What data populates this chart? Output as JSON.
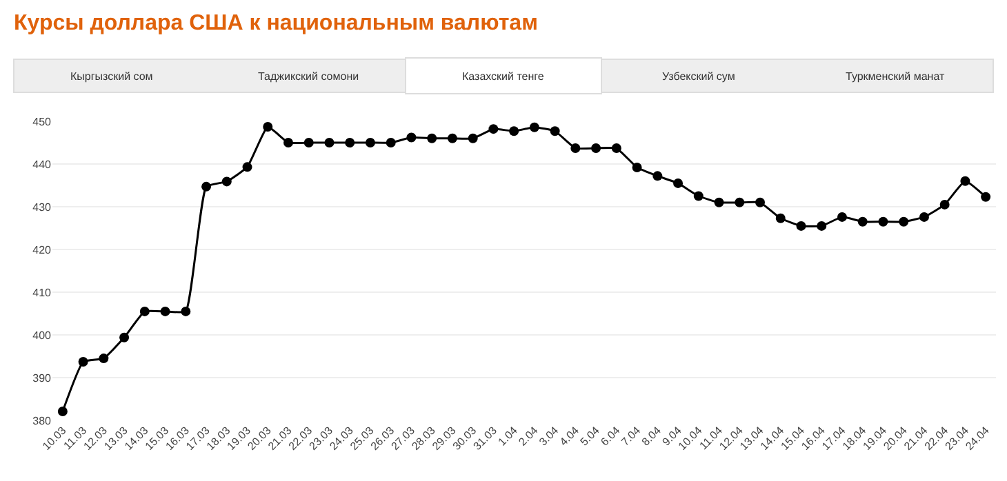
{
  "chart_data": {
    "type": "line",
    "title": "Курсы доллара США к национальным валютам",
    "annotations": [
      "Кыргызский сом",
      "Таджикский сомони",
      "Казахский тенге",
      "Узбекский сум",
      "Туркменский манат"
    ],
    "categories": [
      "10.03",
      "11.03",
      "12.03",
      "13.03",
      "14.03",
      "15.03",
      "16.03",
      "17.03",
      "18.03",
      "19.03",
      "20.03",
      "21.03",
      "22.03",
      "23.03",
      "24.03",
      "25.03",
      "26.03",
      "27.03",
      "28.03",
      "29.03",
      "30.03",
      "31.03",
      "1.04",
      "2.04",
      "3.04",
      "4.04",
      "5.04",
      "6.04",
      "7.04",
      "8.04",
      "9.04",
      "10.04",
      "11.04",
      "12.04",
      "13.04",
      "14.04",
      "15.04",
      "16.04",
      "17.04",
      "18.04",
      "19.04",
      "20.04",
      "21.04",
      "22.04",
      "23.04",
      "24.04"
    ],
    "series": [
      {
        "color": "#000000",
        "values": [
          382.1,
          393.7,
          394.5,
          399.4,
          405.5,
          405.5,
          405.5,
          434.7,
          435.9,
          439.3,
          448.7,
          445.0,
          445.0,
          445.0,
          445.0,
          445.0,
          445.0,
          446.2,
          446.0,
          446.0,
          446.0,
          448.2,
          447.7,
          448.6,
          447.7,
          443.7,
          443.7,
          443.7,
          439.2,
          437.2,
          435.5,
          432.5,
          431.0,
          431.0,
          431.0,
          427.3,
          425.5,
          425.5,
          427.6,
          426.5,
          426.5,
          426.5,
          427.6,
          430.5,
          436.0,
          432.3
        ]
      }
    ],
    "ylim": [
      380,
      450
    ],
    "yticks": [
      380,
      390,
      400,
      410,
      420,
      430,
      440,
      450
    ],
    "grid": "y",
    "legend": false,
    "marker": "circle",
    "line_style": "solid"
  }
}
